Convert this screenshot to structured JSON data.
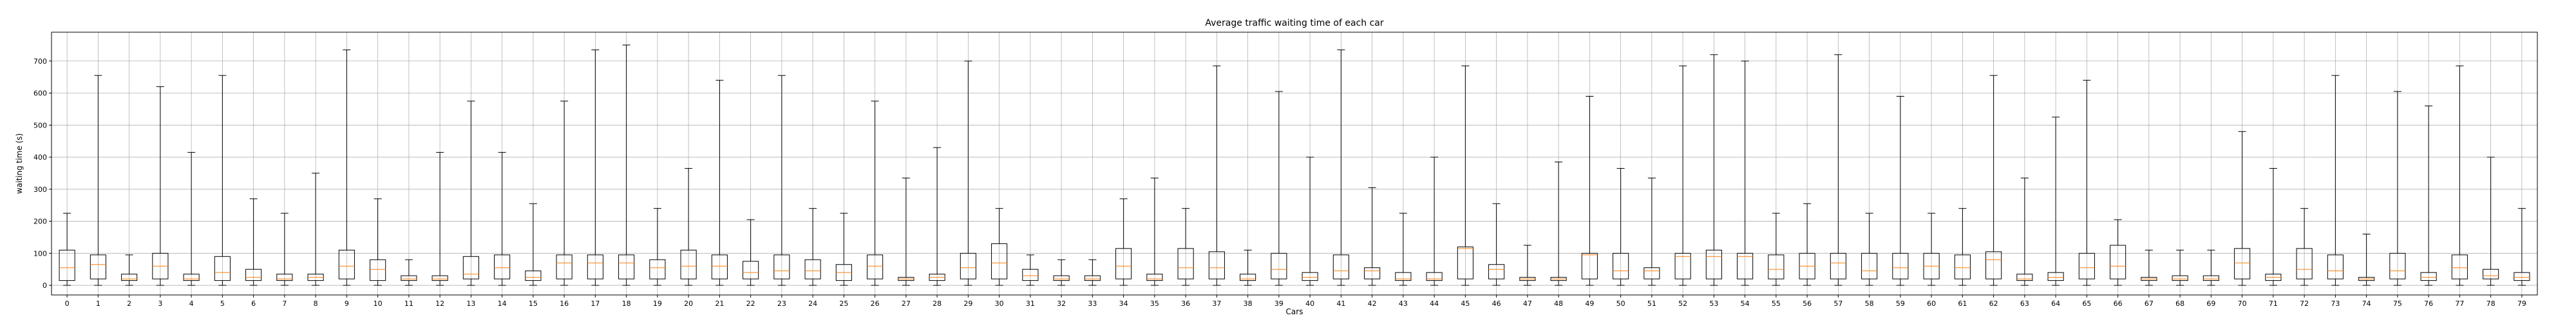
{
  "chart_data": {
    "type": "boxplot",
    "title": "Average traffic waiting time of each car",
    "xlabel": "Cars",
    "ylabel": "waiting time (s)",
    "ylim": [
      -30,
      790
    ],
    "yticks": [
      0,
      100,
      200,
      300,
      400,
      500,
      600,
      700
    ],
    "grid": true,
    "median_color": "#ff7f0e",
    "box_color": "#000000",
    "series": [
      {
        "name": "0",
        "whislo": 0,
        "q1": 15,
        "med": 55,
        "q3": 110,
        "whishi": 225
      },
      {
        "name": "1",
        "whislo": 0,
        "q1": 20,
        "med": 65,
        "q3": 95,
        "whishi": 655
      },
      {
        "name": "2",
        "whislo": 0,
        "q1": 15,
        "med": 20,
        "q3": 35,
        "whishi": 95
      },
      {
        "name": "3",
        "whislo": 0,
        "q1": 20,
        "med": 60,
        "q3": 100,
        "whishi": 620
      },
      {
        "name": "4",
        "whislo": 0,
        "q1": 15,
        "med": 20,
        "q3": 35,
        "whishi": 415
      },
      {
        "name": "5",
        "whislo": 0,
        "q1": 15,
        "med": 40,
        "q3": 90,
        "whishi": 655
      },
      {
        "name": "6",
        "whislo": 0,
        "q1": 15,
        "med": 25,
        "q3": 50,
        "whishi": 270
      },
      {
        "name": "7",
        "whislo": 0,
        "q1": 15,
        "med": 20,
        "q3": 35,
        "whishi": 225
      },
      {
        "name": "8",
        "whislo": 0,
        "q1": 15,
        "med": 25,
        "q3": 35,
        "whishi": 350
      },
      {
        "name": "9",
        "whislo": 0,
        "q1": 20,
        "med": 60,
        "q3": 110,
        "whishi": 735
      },
      {
        "name": "10",
        "whislo": 0,
        "q1": 15,
        "med": 50,
        "q3": 80,
        "whishi": 270
      },
      {
        "name": "11",
        "whislo": 0,
        "q1": 15,
        "med": 20,
        "q3": 30,
        "whishi": 80
      },
      {
        "name": "12",
        "whislo": 0,
        "q1": 15,
        "med": 20,
        "q3": 30,
        "whishi": 415
      },
      {
        "name": "13",
        "whislo": 0,
        "q1": 20,
        "med": 35,
        "q3": 90,
        "whishi": 575
      },
      {
        "name": "14",
        "whislo": 0,
        "q1": 20,
        "med": 55,
        "q3": 95,
        "whishi": 415
      },
      {
        "name": "15",
        "whislo": 0,
        "q1": 15,
        "med": 25,
        "q3": 45,
        "whishi": 255
      },
      {
        "name": "16",
        "whislo": 0,
        "q1": 20,
        "med": 70,
        "q3": 95,
        "whishi": 575
      },
      {
        "name": "17",
        "whislo": 0,
        "q1": 20,
        "med": 70,
        "q3": 95,
        "whishi": 735
      },
      {
        "name": "18",
        "whislo": 0,
        "q1": 20,
        "med": 70,
        "q3": 95,
        "whishi": 750
      },
      {
        "name": "19",
        "whislo": 0,
        "q1": 20,
        "med": 55,
        "q3": 80,
        "whishi": 240
      },
      {
        "name": "20",
        "whislo": 0,
        "q1": 20,
        "med": 60,
        "q3": 110,
        "whishi": 365
      },
      {
        "name": "21",
        "whislo": 0,
        "q1": 20,
        "med": 60,
        "q3": 95,
        "whishi": 640
      },
      {
        "name": "22",
        "whislo": 0,
        "q1": 20,
        "med": 40,
        "q3": 75,
        "whishi": 205
      },
      {
        "name": "23",
        "whislo": 0,
        "q1": 20,
        "med": 45,
        "q3": 95,
        "whishi": 655
      },
      {
        "name": "24",
        "whislo": 0,
        "q1": 20,
        "med": 45,
        "q3": 80,
        "whishi": 240
      },
      {
        "name": "25",
        "whislo": 0,
        "q1": 15,
        "med": 40,
        "q3": 65,
        "whishi": 225
      },
      {
        "name": "26",
        "whislo": 0,
        "q1": 20,
        "med": 60,
        "q3": 95,
        "whishi": 575
      },
      {
        "name": "27",
        "whislo": 0,
        "q1": 15,
        "med": 20,
        "q3": 25,
        "whishi": 335
      },
      {
        "name": "28",
        "whislo": 0,
        "q1": 15,
        "med": 25,
        "q3": 35,
        "whishi": 430
      },
      {
        "name": "29",
        "whislo": 0,
        "q1": 20,
        "med": 55,
        "q3": 100,
        "whishi": 700
      },
      {
        "name": "30",
        "whislo": 0,
        "q1": 20,
        "med": 70,
        "q3": 130,
        "whishi": 240
      },
      {
        "name": "31",
        "whislo": 0,
        "q1": 15,
        "med": 30,
        "q3": 50,
        "whishi": 95
      },
      {
        "name": "32",
        "whislo": 0,
        "q1": 15,
        "med": 20,
        "q3": 30,
        "whishi": 80
      },
      {
        "name": "33",
        "whislo": 0,
        "q1": 15,
        "med": 20,
        "q3": 30,
        "whishi": 80
      },
      {
        "name": "34",
        "whislo": 0,
        "q1": 20,
        "med": 60,
        "q3": 115,
        "whishi": 270
      },
      {
        "name": "35",
        "whislo": 0,
        "q1": 15,
        "med": 20,
        "q3": 35,
        "whishi": 335
      },
      {
        "name": "36",
        "whislo": 0,
        "q1": 20,
        "med": 55,
        "q3": 115,
        "whishi": 240
      },
      {
        "name": "37",
        "whislo": 0,
        "q1": 20,
        "med": 55,
        "q3": 105,
        "whishi": 685
      },
      {
        "name": "38",
        "whislo": 0,
        "q1": 15,
        "med": 20,
        "q3": 35,
        "whishi": 110
      },
      {
        "name": "39",
        "whislo": 0,
        "q1": 20,
        "med": 50,
        "q3": 100,
        "whishi": 605
      },
      {
        "name": "40",
        "whislo": 0,
        "q1": 15,
        "med": 25,
        "q3": 40,
        "whishi": 400
      },
      {
        "name": "41",
        "whislo": 0,
        "q1": 20,
        "med": 45,
        "q3": 95,
        "whishi": 735
      },
      {
        "name": "42",
        "whislo": 0,
        "q1": 20,
        "med": 45,
        "q3": 55,
        "whishi": 305
      },
      {
        "name": "43",
        "whislo": 0,
        "q1": 15,
        "med": 20,
        "q3": 40,
        "whishi": 225
      },
      {
        "name": "44",
        "whislo": 0,
        "q1": 15,
        "med": 20,
        "q3": 40,
        "whishi": 400
      },
      {
        "name": "45",
        "whislo": 0,
        "q1": 20,
        "med": 115,
        "q3": 120,
        "whishi": 685
      },
      {
        "name": "46",
        "whislo": 0,
        "q1": 20,
        "med": 50,
        "q3": 65,
        "whishi": 255
      },
      {
        "name": "47",
        "whislo": 0,
        "q1": 15,
        "med": 20,
        "q3": 25,
        "whishi": 125
      },
      {
        "name": "48",
        "whislo": 0,
        "q1": 15,
        "med": 20,
        "q3": 25,
        "whishi": 385
      },
      {
        "name": "49",
        "whislo": 0,
        "q1": 20,
        "med": 95,
        "q3": 100,
        "whishi": 590
      },
      {
        "name": "50",
        "whislo": 0,
        "q1": 20,
        "med": 45,
        "q3": 100,
        "whishi": 365
      },
      {
        "name": "51",
        "whislo": 0,
        "q1": 20,
        "med": 45,
        "q3": 55,
        "whishi": 335
      },
      {
        "name": "52",
        "whislo": 0,
        "q1": 20,
        "med": 90,
        "q3": 100,
        "whishi": 685
      },
      {
        "name": "53",
        "whislo": 0,
        "q1": 20,
        "med": 90,
        "q3": 110,
        "whishi": 720
      },
      {
        "name": "54",
        "whislo": 0,
        "q1": 20,
        "med": 90,
        "q3": 100,
        "whishi": 700
      },
      {
        "name": "55",
        "whislo": 0,
        "q1": 20,
        "med": 50,
        "q3": 95,
        "whishi": 225
      },
      {
        "name": "56",
        "whislo": 0,
        "q1": 20,
        "med": 60,
        "q3": 100,
        "whishi": 255
      },
      {
        "name": "57",
        "whislo": 0,
        "q1": 20,
        "med": 70,
        "q3": 100,
        "whishi": 720
      },
      {
        "name": "58",
        "whislo": 0,
        "q1": 20,
        "med": 45,
        "q3": 100,
        "whishi": 225
      },
      {
        "name": "59",
        "whislo": 0,
        "q1": 20,
        "med": 55,
        "q3": 100,
        "whishi": 590
      },
      {
        "name": "60",
        "whislo": 0,
        "q1": 20,
        "med": 60,
        "q3": 100,
        "whishi": 225
      },
      {
        "name": "61",
        "whislo": 0,
        "q1": 20,
        "med": 55,
        "q3": 95,
        "whishi": 240
      },
      {
        "name": "62",
        "whislo": 0,
        "q1": 20,
        "med": 80,
        "q3": 105,
        "whishi": 655
      },
      {
        "name": "63",
        "whislo": 0,
        "q1": 15,
        "med": 20,
        "q3": 35,
        "whishi": 335
      },
      {
        "name": "64",
        "whislo": 0,
        "q1": 15,
        "med": 25,
        "q3": 40,
        "whishi": 525
      },
      {
        "name": "65",
        "whislo": 0,
        "q1": 20,
        "med": 55,
        "q3": 100,
        "whishi": 640
      },
      {
        "name": "66",
        "whislo": 0,
        "q1": 20,
        "med": 60,
        "q3": 125,
        "whishi": 205
      },
      {
        "name": "67",
        "whislo": 0,
        "q1": 15,
        "med": 20,
        "q3": 25,
        "whishi": 110
      },
      {
        "name": "68",
        "whislo": 0,
        "q1": 15,
        "med": 20,
        "q3": 30,
        "whishi": 110
      },
      {
        "name": "69",
        "whislo": 0,
        "q1": 15,
        "med": 20,
        "q3": 30,
        "whishi": 110
      },
      {
        "name": "70",
        "whislo": 0,
        "q1": 20,
        "med": 70,
        "q3": 115,
        "whishi": 480
      },
      {
        "name": "71",
        "whislo": 0,
        "q1": 15,
        "med": 25,
        "q3": 35,
        "whishi": 365
      },
      {
        "name": "72",
        "whislo": 0,
        "q1": 20,
        "med": 50,
        "q3": 115,
        "whishi": 240
      },
      {
        "name": "73",
        "whislo": 0,
        "q1": 20,
        "med": 45,
        "q3": 95,
        "whishi": 655
      },
      {
        "name": "74",
        "whislo": 0,
        "q1": 15,
        "med": 20,
        "q3": 25,
        "whishi": 160
      },
      {
        "name": "75",
        "whislo": 0,
        "q1": 20,
        "med": 45,
        "q3": 100,
        "whishi": 605
      },
      {
        "name": "76",
        "whislo": 0,
        "q1": 15,
        "med": 25,
        "q3": 40,
        "whishi": 560
      },
      {
        "name": "77",
        "whislo": 0,
        "q1": 20,
        "med": 55,
        "q3": 95,
        "whishi": 685
      },
      {
        "name": "78",
        "whislo": 0,
        "q1": 20,
        "med": 30,
        "q3": 50,
        "whishi": 400
      },
      {
        "name": "79",
        "whislo": 0,
        "q1": 15,
        "med": 25,
        "q3": 40,
        "whishi": 240
      }
    ]
  }
}
